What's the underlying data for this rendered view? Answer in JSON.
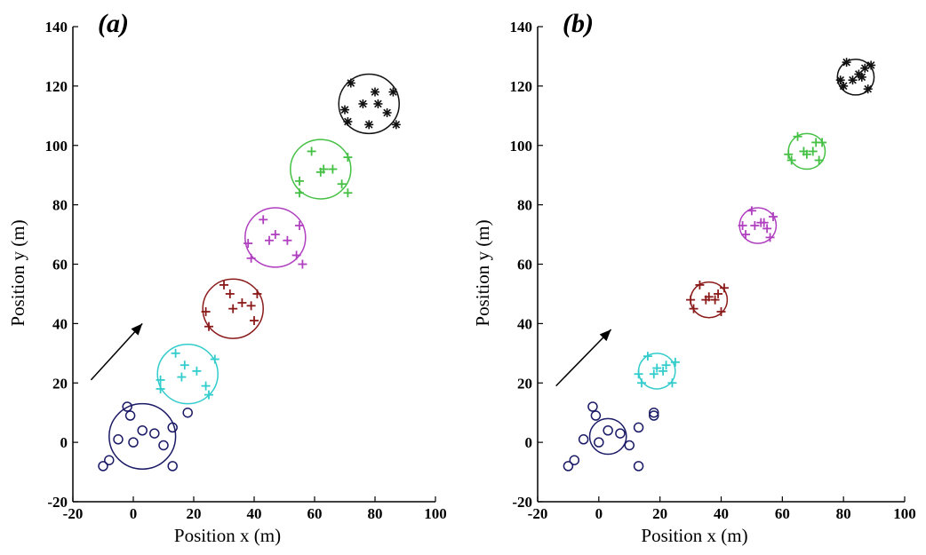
{
  "chart_data": [
    {
      "type": "scatter",
      "panel_label": "(a)",
      "xlabel": "Position x (m)",
      "ylabel": "Position y (m)",
      "xlim": [
        -20,
        100
      ],
      "ylim": [
        -20,
        140
      ],
      "xticks": [
        -20,
        0,
        20,
        40,
        60,
        80,
        100
      ],
      "yticks": [
        -20,
        0,
        20,
        40,
        60,
        80,
        100,
        120,
        140
      ],
      "grid": false,
      "arrow": {
        "from": [
          -14,
          21
        ],
        "to": [
          3,
          40
        ]
      },
      "series": [
        {
          "marker": "o",
          "color": "#1a1a66",
          "circle": {
            "cx": 3,
            "cy": 2,
            "r": 11
          },
          "points": [
            [
              -10,
              -8
            ],
            [
              -8,
              -6
            ],
            [
              -5,
              1
            ],
            [
              -2,
              12
            ],
            [
              -1,
              9
            ],
            [
              0,
              0
            ],
            [
              3,
              4
            ],
            [
              7,
              3
            ],
            [
              10,
              -1
            ],
            [
              13,
              5
            ],
            [
              13,
              -8
            ],
            [
              18,
              10
            ]
          ]
        },
        {
          "marker": "+",
          "color": "#33cccc",
          "circle": {
            "cx": 18,
            "cy": 23,
            "r": 10
          },
          "points": [
            [
              9,
              18
            ],
            [
              9,
              21
            ],
            [
              14,
              30
            ],
            [
              16,
              22
            ],
            [
              17,
              26
            ],
            [
              21,
              24
            ],
            [
              24,
              19
            ],
            [
              25,
              16
            ],
            [
              27,
              28
            ]
          ]
        },
        {
          "marker": "+",
          "color": "#8b1a1a",
          "circle": {
            "cx": 33,
            "cy": 45,
            "r": 10
          },
          "points": [
            [
              24,
              44
            ],
            [
              25,
              39
            ],
            [
              30,
              53
            ],
            [
              32,
              50
            ],
            [
              33,
              45
            ],
            [
              36,
              47
            ],
            [
              39,
              46
            ],
            [
              40,
              41
            ],
            [
              41,
              50
            ]
          ]
        },
        {
          "marker": "+",
          "color": "#b040c0",
          "circle": {
            "cx": 47,
            "cy": 69,
            "r": 10
          },
          "points": [
            [
              38,
              67
            ],
            [
              39,
              62
            ],
            [
              43,
              75
            ],
            [
              45,
              68
            ],
            [
              47,
              70
            ],
            [
              51,
              68
            ],
            [
              54,
              63
            ],
            [
              55,
              73
            ],
            [
              56,
              60
            ]
          ]
        },
        {
          "marker": "+",
          "color": "#44c044",
          "circle": {
            "cx": 62,
            "cy": 92,
            "r": 10
          },
          "points": [
            [
              55,
              88
            ],
            [
              55,
              84
            ],
            [
              59,
              98
            ],
            [
              62,
              91
            ],
            [
              63,
              92
            ],
            [
              66,
              92
            ],
            [
              69,
              87
            ],
            [
              71,
              96
            ],
            [
              71,
              84
            ]
          ]
        },
        {
          "marker": "*",
          "color": "#111111",
          "circle": {
            "cx": 78,
            "cy": 114,
            "r": 10
          },
          "points": [
            [
              70,
              112
            ],
            [
              71,
              108
            ],
            [
              72,
              121
            ],
            [
              76,
              114
            ],
            [
              78,
              107
            ],
            [
              80,
              118
            ],
            [
              81,
              114
            ],
            [
              84,
              111
            ],
            [
              86,
              118
            ],
            [
              87,
              107
            ]
          ]
        }
      ]
    },
    {
      "type": "scatter",
      "panel_label": "(b)",
      "xlabel": "Position x (m)",
      "ylabel": "Position y (m)",
      "xlim": [
        -20,
        100
      ],
      "ylim": [
        -20,
        140
      ],
      "xticks": [
        -20,
        0,
        20,
        40,
        60,
        80,
        100
      ],
      "yticks": [
        -20,
        0,
        20,
        40,
        60,
        80,
        100,
        120,
        140
      ],
      "grid": false,
      "arrow": {
        "from": [
          -14,
          19
        ],
        "to": [
          4,
          38
        ]
      },
      "series": [
        {
          "marker": "o",
          "color": "#1a1a66",
          "circle": {
            "cx": 3,
            "cy": 2,
            "r": 6
          },
          "points": [
            [
              -10,
              -8
            ],
            [
              -8,
              -6
            ],
            [
              -5,
              1
            ],
            [
              -2,
              12
            ],
            [
              -1,
              9
            ],
            [
              0,
              0
            ],
            [
              3,
              4
            ],
            [
              7,
              3
            ],
            [
              10,
              -1
            ],
            [
              13,
              5
            ],
            [
              13,
              -8
            ],
            [
              18,
              10
            ],
            [
              18,
              9
            ]
          ]
        },
        {
          "marker": "+",
          "color": "#33cccc",
          "circle": {
            "cx": 19,
            "cy": 24,
            "r": 6
          },
          "points": [
            [
              13,
              23
            ],
            [
              14,
              20
            ],
            [
              16,
              29
            ],
            [
              18,
              23
            ],
            [
              19,
              25
            ],
            [
              21,
              24
            ],
            [
              22,
              26
            ],
            [
              24,
              20
            ],
            [
              25,
              27
            ]
          ]
        },
        {
          "marker": "+",
          "color": "#8b1a1a",
          "circle": {
            "cx": 36,
            "cy": 48,
            "r": 6
          },
          "points": [
            [
              30,
              48
            ],
            [
              31,
              45
            ],
            [
              33,
              53
            ],
            [
              35,
              48
            ],
            [
              36,
              49
            ],
            [
              38,
              48
            ],
            [
              39,
              50
            ],
            [
              40,
              44
            ],
            [
              41,
              52
            ]
          ]
        },
        {
          "marker": "+",
          "color": "#b040c0",
          "circle": {
            "cx": 52,
            "cy": 73,
            "r": 6
          },
          "points": [
            [
              47,
              73
            ],
            [
              48,
              70
            ],
            [
              50,
              78
            ],
            [
              51,
              73
            ],
            [
              53,
              74
            ],
            [
              54,
              74
            ],
            [
              55,
              72
            ],
            [
              56,
              69
            ],
            [
              57,
              76
            ]
          ]
        },
        {
          "marker": "+",
          "color": "#44c044",
          "circle": {
            "cx": 68,
            "cy": 98,
            "r": 6
          },
          "points": [
            [
              62,
              97
            ],
            [
              63,
              95
            ],
            [
              65,
              103
            ],
            [
              67,
              98
            ],
            [
              68,
              97
            ],
            [
              70,
              98
            ],
            [
              71,
              101
            ],
            [
              72,
              95
            ],
            [
              73,
              101
            ]
          ]
        },
        {
          "marker": "*",
          "color": "#111111",
          "circle": {
            "cx": 84,
            "cy": 123,
            "r": 6
          },
          "points": [
            [
              79,
              122
            ],
            [
              80,
              120
            ],
            [
              81,
              128
            ],
            [
              83,
              122
            ],
            [
              85,
              124
            ],
            [
              86,
              123
            ],
            [
              87,
              126
            ],
            [
              88,
              119
            ],
            [
              89,
              127
            ]
          ]
        }
      ]
    }
  ]
}
